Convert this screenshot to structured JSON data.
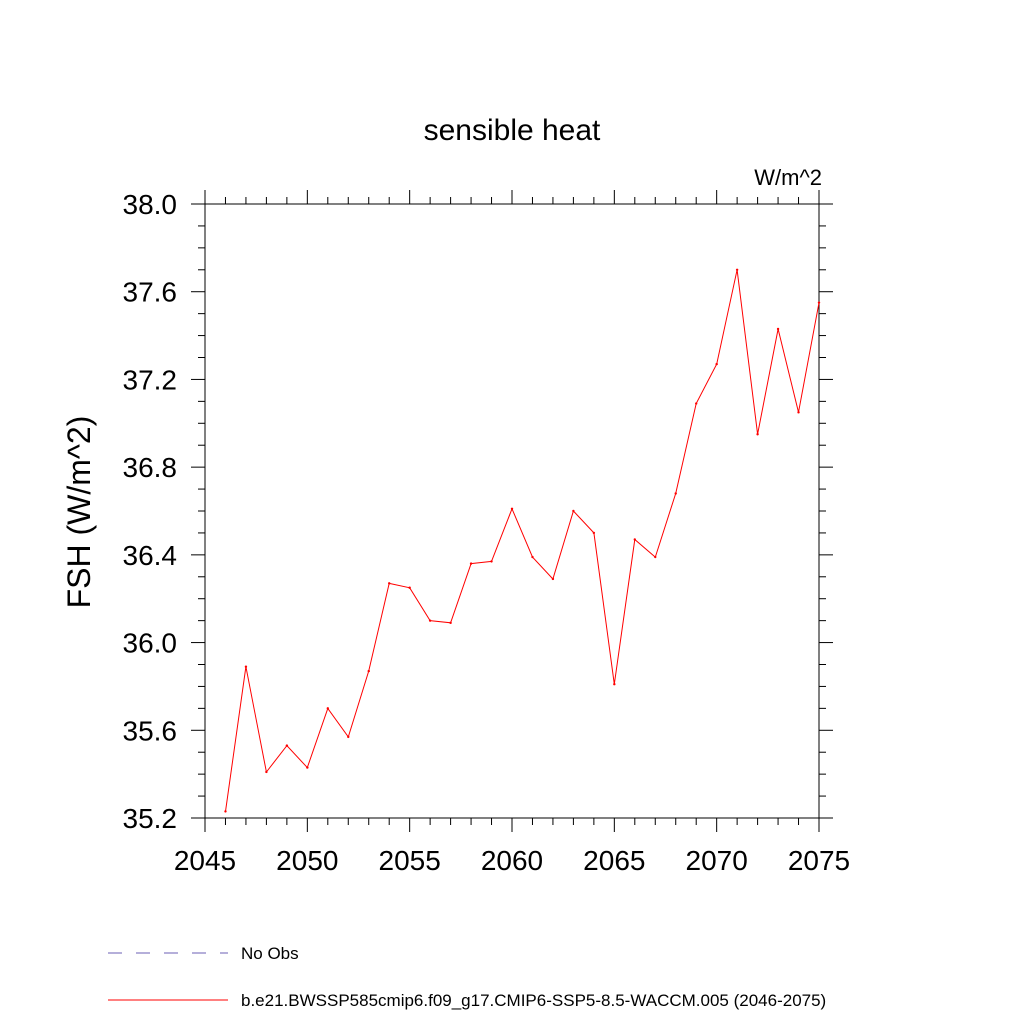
{
  "chart_data": {
    "type": "line",
    "title": "sensible heat",
    "units": "W/m^2",
    "ylabel": "FSH  (W/m^2)",
    "xlabel": "",
    "xlim": [
      2045,
      2075
    ],
    "ylim": [
      35.2,
      38.0
    ],
    "xticks": [
      2045,
      2050,
      2055,
      2060,
      2065,
      2070,
      2075
    ],
    "xtick_labels": [
      "2045",
      "2050",
      "2055",
      "2060",
      "2065",
      "2070",
      "2075"
    ],
    "yticks": [
      35.2,
      35.6,
      36.0,
      36.4,
      36.8,
      37.2,
      37.6,
      38.0
    ],
    "ytick_labels": [
      "35.2",
      "35.6",
      "36.0",
      "36.4",
      "36.8",
      "37.2",
      "37.6",
      "38.0"
    ],
    "grid": false,
    "legend_placement": "bottom",
    "legend": [
      {
        "label": "No Obs",
        "color": "#6b5fb5",
        "dash": "dashed"
      },
      {
        "label": "b.e21.BWSSP585cmip6.f09_g17.CMIP6-SSP5-8.5-WACCM.005 (2046-2075)",
        "color": "#ff0000",
        "dash": "solid"
      }
    ],
    "series": [
      {
        "name": "b.e21.BWSSP585cmip6.f09_g17.CMIP6-SSP5-8.5-WACCM.005 (2046-2075)",
        "color": "#ff0000",
        "x": [
          2046,
          2047,
          2048,
          2049,
          2050,
          2051,
          2052,
          2053,
          2054,
          2055,
          2056,
          2057,
          2058,
          2059,
          2060,
          2061,
          2062,
          2063,
          2064,
          2065,
          2066,
          2067,
          2068,
          2069,
          2070,
          2071,
          2072,
          2073,
          2074,
          2075
        ],
        "y": [
          35.23,
          35.89,
          35.41,
          35.53,
          35.43,
          35.7,
          35.57,
          35.87,
          36.27,
          36.25,
          36.1,
          36.09,
          36.36,
          36.37,
          36.61,
          36.39,
          36.29,
          36.6,
          36.5,
          35.81,
          36.47,
          36.39,
          36.68,
          37.09,
          37.27,
          37.7,
          36.95,
          37.43,
          37.05,
          37.55
        ]
      }
    ]
  }
}
